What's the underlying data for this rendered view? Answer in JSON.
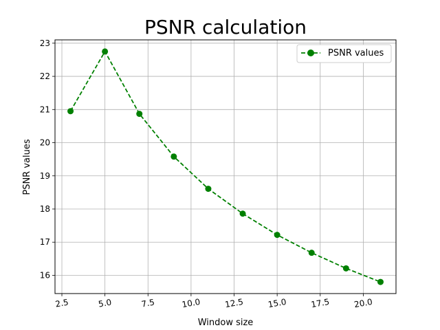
{
  "chart_data": {
    "type": "line",
    "title": "PSNR calculation",
    "xlabel": "Window size",
    "ylabel": "PSNR values",
    "x": [
      3,
      5,
      7,
      9,
      11,
      13,
      15,
      17,
      19,
      21
    ],
    "series": [
      {
        "name": "PSNR values",
        "values": [
          20.95,
          22.75,
          20.87,
          19.58,
          18.61,
          17.86,
          17.22,
          16.68,
          16.21,
          15.8
        ],
        "color": "#008000",
        "line_style": "dashed",
        "marker": "circle"
      }
    ],
    "xlim": [
      2.1,
      21.9
    ],
    "ylim": [
      15.45,
      23.1
    ],
    "xticks": [
      2.5,
      5.0,
      7.5,
      10.0,
      12.5,
      15.0,
      17.5,
      20.0
    ],
    "xtick_labels": [
      "2.5",
      "5.0",
      "7.5",
      "10.0",
      "12.5",
      "15.0",
      "17.5",
      "20.0"
    ],
    "yticks": [
      16,
      17,
      18,
      19,
      20,
      21,
      22,
      23
    ],
    "ytick_labels": [
      "16",
      "17",
      "18",
      "19",
      "20",
      "21",
      "22",
      "23"
    ],
    "grid": true,
    "legend_position": "top-right"
  }
}
